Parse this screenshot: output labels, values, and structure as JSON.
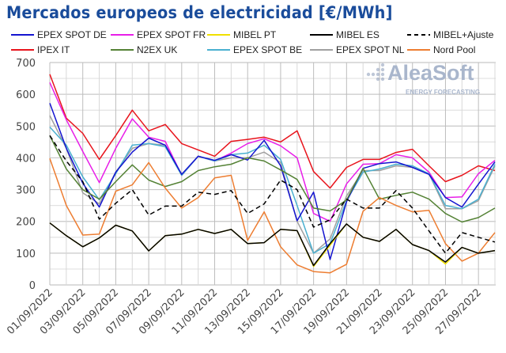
{
  "chart_data": {
    "type": "line",
    "title": "Mercados europeos de electricidad [€/MWh]",
    "xlabel": "",
    "ylabel": "",
    "ylim": [
      0,
      700
    ],
    "yticks": [
      0,
      100,
      200,
      300,
      400,
      500,
      600,
      700
    ],
    "grid": true,
    "legend_placement": "top",
    "x": [
      "01/09/2022",
      "02/09/2022",
      "03/09/2022",
      "04/09/2022",
      "05/09/2022",
      "06/09/2022",
      "07/09/2022",
      "08/09/2022",
      "09/09/2022",
      "10/09/2022",
      "11/09/2022",
      "12/09/2022",
      "13/09/2022",
      "14/09/2022",
      "15/09/2022",
      "16/09/2022",
      "17/09/2022",
      "18/09/2022",
      "19/09/2022",
      "20/09/2022",
      "21/09/2022",
      "22/09/2022",
      "23/09/2022",
      "24/09/2022",
      "25/09/2022",
      "26/09/2022",
      "27/09/2022",
      "28/09/2022"
    ],
    "xtick_labels": [
      "01/09/2022",
      "03/09/2022",
      "05/09/2022",
      "07/09/2022",
      "09/09/2022",
      "11/09/2022",
      "13/09/2022",
      "15/09/2022",
      "17/09/2022",
      "19/09/2022",
      "21/09/2022",
      "23/09/2022",
      "25/09/2022",
      "27/09/2022"
    ],
    "series": [
      {
        "name": "IPEX IT",
        "color": "#e8141c",
        "dash": false,
        "values": [
          663,
          525,
          477,
          395,
          470,
          550,
          485,
          505,
          445,
          425,
          405,
          452,
          458,
          465,
          450,
          485,
          357,
          305,
          370,
          395,
          395,
          417,
          427,
          375,
          325,
          345,
          375,
          360
        ]
      },
      {
        "name": "EPEX SPOT FR",
        "color": "#e81ee8",
        "dash": false,
        "values": [
          637,
          520,
          420,
          322,
          430,
          523,
          465,
          452,
          345,
          405,
          390,
          415,
          445,
          460,
          438,
          400,
          225,
          200,
          318,
          380,
          382,
          410,
          400,
          355,
          275,
          277,
          350,
          392
        ]
      },
      {
        "name": "EPEX SPOT NL",
        "color": "#a0a0a0",
        "dash": false,
        "values": [
          533,
          430,
          290,
          255,
          355,
          430,
          445,
          440,
          345,
          405,
          390,
          400,
          400,
          418,
          385,
          200,
          100,
          145,
          280,
          360,
          360,
          375,
          370,
          350,
          240,
          240,
          265,
          375
        ]
      },
      {
        "name": "EPEX SPOT BE",
        "color": "#4ab0d0",
        "dash": false,
        "values": [
          497,
          440,
          340,
          268,
          350,
          440,
          445,
          435,
          345,
          405,
          390,
          410,
          415,
          440,
          395,
          250,
          100,
          130,
          265,
          355,
          365,
          380,
          375,
          350,
          250,
          240,
          270,
          380
        ]
      },
      {
        "name": "EPEX SPOT DE",
        "color": "#1414d0",
        "dash": false,
        "values": [
          572,
          430,
          320,
          245,
          355,
          418,
          462,
          440,
          348,
          405,
          392,
          410,
          393,
          455,
          375,
          202,
          292,
          80,
          262,
          367,
          382,
          387,
          370,
          348,
          275,
          245,
          317,
          387
        ]
      },
      {
        "name": "N2EX UK",
        "color": "#548235",
        "dash": false,
        "values": [
          470,
          365,
          300,
          270,
          325,
          378,
          330,
          310,
          325,
          360,
          372,
          380,
          400,
          390,
          362,
          332,
          242,
          233,
          267,
          367,
          270,
          282,
          292,
          270,
          225,
          198,
          212,
          242
        ]
      },
      {
        "name": "Nord Pool",
        "color": "#ed7d31",
        "dash": false,
        "values": [
          398,
          250,
          157,
          160,
          295,
          315,
          385,
          305,
          242,
          275,
          337,
          345,
          140,
          230,
          120,
          63,
          42,
          38,
          65,
          232,
          275,
          250,
          230,
          235,
          130,
          75,
          100,
          165
        ]
      },
      {
        "name": "MIBEL+Ajuste",
        "color": "#000000",
        "dash": true,
        "values": [
          470,
          390,
          325,
          207,
          257,
          300,
          220,
          248,
          248,
          292,
          285,
          297,
          225,
          255,
          330,
          300,
          182,
          205,
          270,
          242,
          242,
          297,
          242,
          170,
          100,
          165,
          150,
          135
        ]
      },
      {
        "name": "MIBEL PT",
        "color": "#f0e000",
        "dash": false,
        "values": [
          195,
          155,
          120,
          148,
          188,
          170,
          107,
          155,
          160,
          175,
          162,
          175,
          130,
          133,
          175,
          171,
          58,
          125,
          192,
          150,
          137,
          175,
          127,
          108,
          66,
          118,
          100,
          108
        ]
      },
      {
        "name": "MIBEL ES",
        "color": "#000000",
        "dash": false,
        "values": [
          195,
          155,
          120,
          148,
          188,
          170,
          107,
          155,
          160,
          175,
          162,
          175,
          130,
          133,
          175,
          171,
          61,
          130,
          192,
          150,
          137,
          175,
          127,
          108,
          72,
          118,
          100,
          108
        ]
      }
    ],
    "legend": [
      {
        "name": "EPEX SPOT DE",
        "color": "#1414d0",
        "dash": false
      },
      {
        "name": "EPEX SPOT FR",
        "color": "#e81ee8",
        "dash": false
      },
      {
        "name": "MIBEL PT",
        "color": "#f0e000",
        "dash": false
      },
      {
        "name": "MIBEL ES",
        "color": "#000000",
        "dash": false
      },
      {
        "name": "MIBEL+Ajuste",
        "color": "#000000",
        "dash": true
      },
      {
        "name": "IPEX IT",
        "color": "#e8141c",
        "dash": false
      },
      {
        "name": "N2EX UK",
        "color": "#548235",
        "dash": false
      },
      {
        "name": "EPEX SPOT BE",
        "color": "#4ab0d0",
        "dash": false
      },
      {
        "name": "EPEX SPOT NL",
        "color": "#a0a0a0",
        "dash": false
      },
      {
        "name": "Nord Pool",
        "color": "#ed7d31",
        "dash": false
      }
    ]
  },
  "watermark": {
    "brand": "AleaSoft",
    "tagline": "ENERGY FORECASTING"
  }
}
